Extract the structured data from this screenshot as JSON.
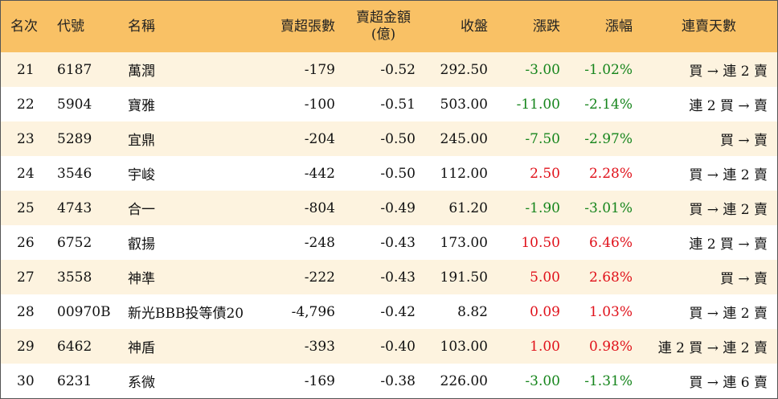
{
  "table": {
    "headers": {
      "rank": "名次",
      "code": "代號",
      "name": "名稱",
      "net_sell_lots": "賣超張數",
      "net_sell_amount_line1": "賣超金額",
      "net_sell_amount_line2": "(億)",
      "close": "收盤",
      "change": "漲跌",
      "change_pct": "漲幅",
      "streak": "連賣天數"
    },
    "rows": [
      {
        "rank": "21",
        "code": "6187",
        "name": "萬潤",
        "lots": "-179",
        "amount": "-0.52",
        "close": "292.50",
        "change": "-3.00",
        "pct": "-1.02%",
        "dir": "down",
        "streak": "買 → 連 2 賣"
      },
      {
        "rank": "22",
        "code": "5904",
        "name": "寶雅",
        "lots": "-100",
        "amount": "-0.51",
        "close": "503.00",
        "change": "-11.00",
        "pct": "-2.14%",
        "dir": "down",
        "streak": "連 2 買 → 賣"
      },
      {
        "rank": "23",
        "code": "5289",
        "name": "宜鼎",
        "lots": "-204",
        "amount": "-0.50",
        "close": "245.00",
        "change": "-7.50",
        "pct": "-2.97%",
        "dir": "down",
        "streak": "買 → 賣"
      },
      {
        "rank": "24",
        "code": "3546",
        "name": "宇峻",
        "lots": "-442",
        "amount": "-0.50",
        "close": "112.00",
        "change": "2.50",
        "pct": "2.28%",
        "dir": "up",
        "streak": "買 → 連 2 賣"
      },
      {
        "rank": "25",
        "code": "4743",
        "name": "合一",
        "lots": "-804",
        "amount": "-0.49",
        "close": "61.20",
        "change": "-1.90",
        "pct": "-3.01%",
        "dir": "down",
        "streak": "買 → 連 2 賣"
      },
      {
        "rank": "26",
        "code": "6752",
        "name": "叡揚",
        "lots": "-248",
        "amount": "-0.43",
        "close": "173.00",
        "change": "10.50",
        "pct": "6.46%",
        "dir": "up",
        "streak": "連 2 買 → 賣"
      },
      {
        "rank": "27",
        "code": "3558",
        "name": "神準",
        "lots": "-222",
        "amount": "-0.43",
        "close": "191.50",
        "change": "5.00",
        "pct": "2.68%",
        "dir": "up",
        "streak": "買 → 賣"
      },
      {
        "rank": "28",
        "code": "00970B",
        "name": "新光BBB投等債20",
        "lots": "-4,796",
        "amount": "-0.42",
        "close": "8.82",
        "change": "0.09",
        "pct": "1.03%",
        "dir": "up",
        "streak": "買 → 連 2 賣"
      },
      {
        "rank": "29",
        "code": "6462",
        "name": "神盾",
        "lots": "-393",
        "amount": "-0.40",
        "close": "103.00",
        "change": "1.00",
        "pct": "0.98%",
        "dir": "up",
        "streak": "連 2 買 → 連 2 賣"
      },
      {
        "rank": "30",
        "code": "6231",
        "name": "系微",
        "lots": "-169",
        "amount": "-0.38",
        "close": "226.00",
        "change": "-3.00",
        "pct": "-1.31%",
        "dir": "down",
        "streak": "買 → 連 6 賣"
      }
    ]
  },
  "colors": {
    "header_bg": "#f9c165",
    "stripe_bg": "#fdf3df",
    "up": "#e0121b",
    "down": "#16851c"
  }
}
